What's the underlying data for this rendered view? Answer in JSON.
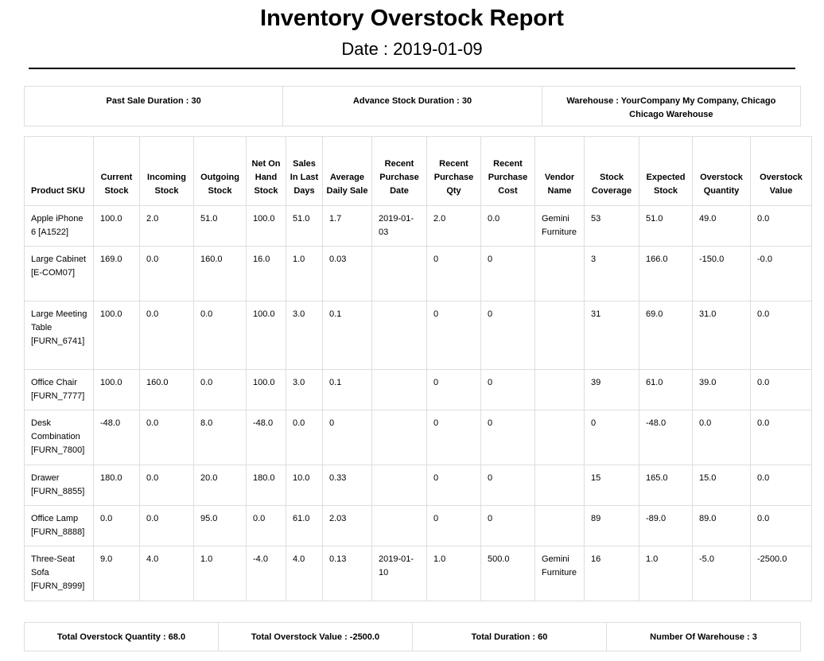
{
  "report": {
    "title": "Inventory Overstock Report",
    "date": "Date : 2019-01-09"
  },
  "info": {
    "past_sale_duration": "Past Sale Duration : 30",
    "advance_stock_duration": "Advance Stock Duration : 30",
    "warehouse": "Warehouse : YourCompany My Company, Chicago Chicago Warehouse"
  },
  "table": {
    "headers": [
      "Product SKU",
      "Current Stock",
      "Incoming Stock",
      "Outgoing Stock",
      "Net On Hand Stock",
      "Sales In Last Days",
      "Average Daily Sale",
      "Recent Purchase Date",
      "Recent Purchase Qty",
      "Recent Purchase Cost",
      "Vendor Name",
      "Stock Coverage",
      "Expected Stock",
      "Overstock Quantity",
      "Overstock Value"
    ],
    "rows": [
      [
        "Apple iPhone 6 [A1522]",
        "100.0",
        "2.0",
        "51.0",
        "100.0",
        "51.0",
        "1.7",
        "2019-01-03",
        "2.0",
        "0.0",
        "Gemini Furniture",
        "53",
        "51.0",
        "49.0",
        "0.0"
      ],
      [
        "Large Cabinet [E-COM07]",
        "169.0",
        "0.0",
        "160.0",
        "16.0",
        "1.0",
        "0.03",
        "",
        "0",
        "0",
        "",
        "3",
        "166.0",
        "-150.0",
        "-0.0"
      ],
      [
        "Large Meeting Table [FURN_6741]",
        "100.0",
        "0.0",
        "0.0",
        "100.0",
        "3.0",
        "0.1",
        "",
        "0",
        "0",
        "",
        "31",
        "69.0",
        "31.0",
        "0.0"
      ],
      [
        "Office Chair [FURN_7777]",
        "100.0",
        "160.0",
        "0.0",
        "100.0",
        "3.0",
        "0.1",
        "",
        "0",
        "0",
        "",
        "39",
        "61.0",
        "39.0",
        "0.0"
      ],
      [
        "Desk Combination [FURN_7800]",
        "-48.0",
        "0.0",
        "8.0",
        "-48.0",
        "0.0",
        "0",
        "",
        "0",
        "0",
        "",
        "0",
        "-48.0",
        "0.0",
        "0.0"
      ],
      [
        "Drawer [FURN_8855]",
        "180.0",
        "0.0",
        "20.0",
        "180.0",
        "10.0",
        "0.33",
        "",
        "0",
        "0",
        "",
        "15",
        "165.0",
        "15.0",
        "0.0"
      ],
      [
        "Office Lamp [FURN_8888]",
        "0.0",
        "0.0",
        "95.0",
        "0.0",
        "61.0",
        "2.03",
        "",
        "0",
        "0",
        "",
        "89",
        "-89.0",
        "89.0",
        "0.0"
      ],
      [
        "Three-Seat Sofa [FURN_8999]",
        "9.0",
        "4.0",
        "1.0",
        "-4.0",
        "4.0",
        "0.13",
        "2019-01-10",
        "1.0",
        "500.0",
        "Gemini Furniture",
        "16",
        "1.0",
        "-5.0",
        "-2500.0"
      ]
    ]
  },
  "totals": {
    "overstock_quantity": "Total Overstock Quantity : 68.0",
    "overstock_value": "Total Overstock Value : -2500.0",
    "duration": "Total Duration : 60",
    "warehouses": "Number Of Warehouse : 3"
  },
  "colors": {
    "border": "#dedede",
    "text": "#000000",
    "background": "#ffffff"
  }
}
